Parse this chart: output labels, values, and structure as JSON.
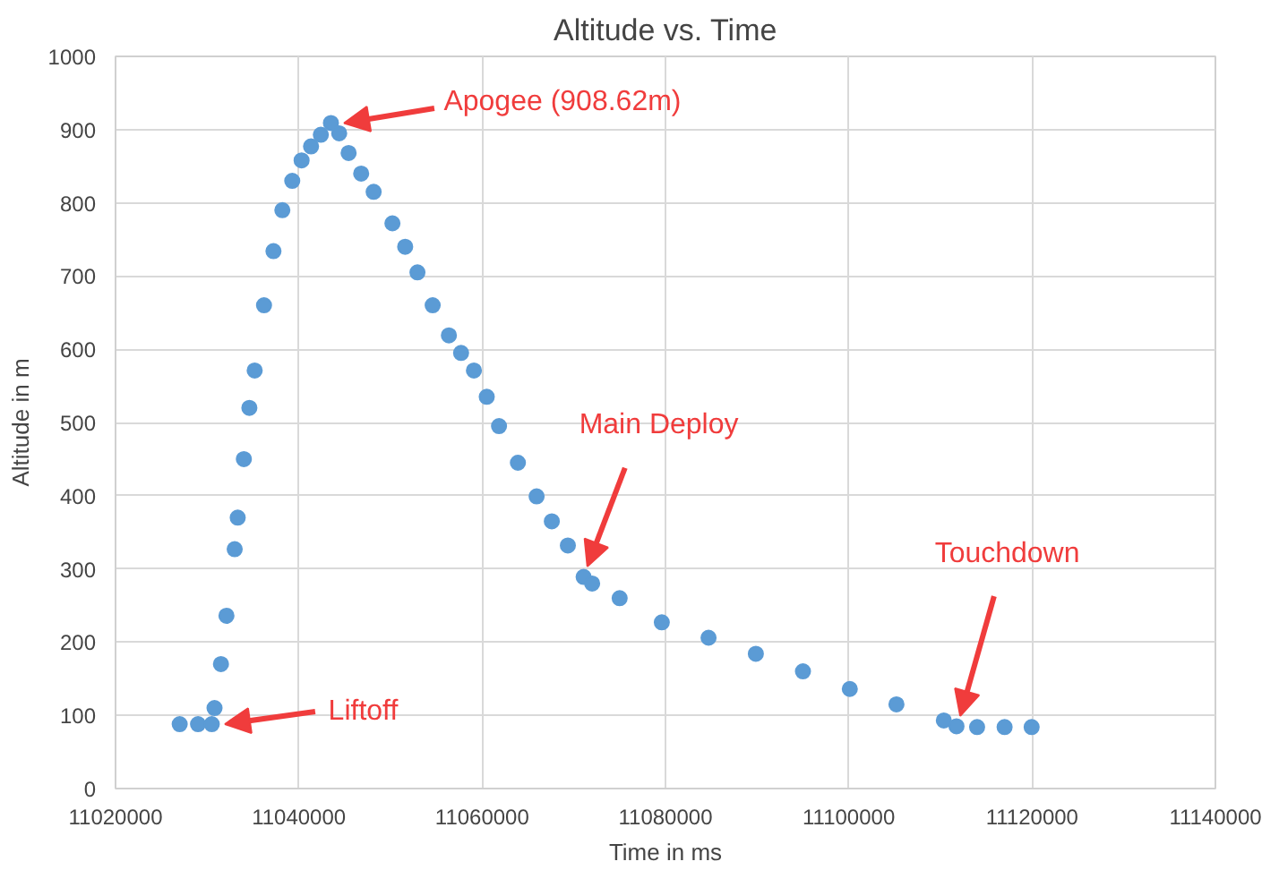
{
  "chart_data": {
    "type": "scatter",
    "title": "Altitude vs. Time",
    "xlabel": "Time in ms",
    "ylabel": "Altitude in m",
    "x": [
      11027000,
      11029000,
      11030500,
      11030800,
      11031500,
      11032100,
      11033000,
      11033330,
      11034000,
      11034600,
      11035180,
      11036200,
      11037230,
      11038200,
      11039280,
      11040300,
      11041330,
      11042400,
      11043500,
      11044400,
      11045430,
      11046800,
      11048160,
      11050210,
      11051600,
      11052940,
      11054600,
      11056370,
      11057700,
      11059100,
      11060500,
      11061840,
      11063900,
      11065940,
      11067600,
      11069350,
      11071070,
      11072000,
      11075000,
      11079600,
      11084700,
      11089860,
      11095000,
      11100110,
      11105200,
      11110370,
      11111750,
      11114000,
      11117000,
      11119950
    ],
    "values": [
      88,
      88,
      88,
      110,
      170,
      236,
      327,
      370,
      450,
      520,
      571,
      660,
      734,
      790,
      830,
      858,
      877,
      893,
      909,
      895,
      868,
      840,
      815,
      772,
      740,
      705,
      660,
      619,
      595,
      571,
      535,
      495,
      445,
      399,
      365,
      332,
      289,
      280,
      260,
      227,
      206,
      184,
      160,
      136,
      115,
      93,
      85,
      84,
      84,
      84
    ],
    "color": "#5b9bd5",
    "marker": "circle",
    "grid": true,
    "xlim": [
      11020000,
      11140000
    ],
    "ylim": [
      0,
      1000
    ],
    "xticks": [
      11020000,
      11040000,
      11060000,
      11080000,
      11100000,
      11120000,
      11140000
    ],
    "yticks": [
      0,
      100,
      200,
      300,
      400,
      500,
      600,
      700,
      800,
      900,
      1000
    ],
    "annotations": [
      {
        "text": "Apogee (908.62m)",
        "x": 11043500,
        "y": 909
      },
      {
        "text": "Liftoff",
        "x": 11030500,
        "y": 88
      },
      {
        "text": "Main Deploy",
        "x": 11071070,
        "y": 289
      },
      {
        "text": "Touchdown",
        "x": 11111750,
        "y": 85
      }
    ]
  }
}
